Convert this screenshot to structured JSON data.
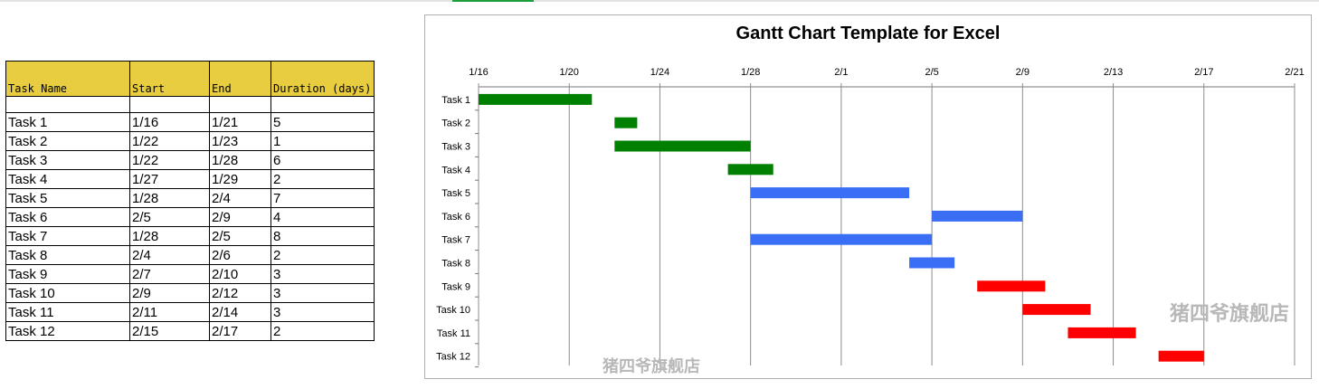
{
  "table": {
    "headers": [
      "Task Name",
      "Start",
      "End",
      "Duration (days)"
    ],
    "rows": [
      [
        "Task 1",
        "1/16",
        "1/21",
        "5"
      ],
      [
        "Task 2",
        "1/22",
        "1/23",
        "1"
      ],
      [
        "Task 3",
        "1/22",
        "1/28",
        "6"
      ],
      [
        "Task 4",
        "1/27",
        "1/29",
        "2"
      ],
      [
        "Task 5",
        "1/28",
        "2/4",
        "7"
      ],
      [
        "Task 6",
        "2/5",
        "2/9",
        "4"
      ],
      [
        "Task 7",
        "1/28",
        "2/5",
        "8"
      ],
      [
        "Task 8",
        "2/4",
        "2/6",
        "2"
      ],
      [
        "Task 9",
        "2/7",
        "2/10",
        "3"
      ],
      [
        "Task 10",
        "2/9",
        "2/12",
        "3"
      ],
      [
        "Task 11",
        "2/11",
        "2/14",
        "3"
      ],
      [
        "Task 12",
        "2/15",
        "2/17",
        "2"
      ]
    ]
  },
  "chart_data": {
    "type": "bar",
    "subtype": "gantt-horizontal",
    "title": "Gantt Chart Template for Excel",
    "x_axis_position": "top",
    "grid": "vertical",
    "xlim": [
      "1/16",
      "2/21"
    ],
    "x_ticks": [
      "1/16",
      "1/20",
      "1/24",
      "1/28",
      "2/1",
      "2/5",
      "2/9",
      "2/13",
      "2/17",
      "2/21"
    ],
    "categories": [
      "Task 1",
      "Task 2",
      "Task 3",
      "Task 4",
      "Task 5",
      "Task 6",
      "Task 7",
      "Task 8",
      "Task 9",
      "Task 10",
      "Task 11",
      "Task 12"
    ],
    "start": [
      "1/16",
      "1/22",
      "1/22",
      "1/27",
      "1/28",
      "2/5",
      "1/28",
      "2/4",
      "2/7",
      "2/9",
      "2/11",
      "2/15"
    ],
    "end": [
      "1/21",
      "1/23",
      "1/28",
      "1/29",
      "2/4",
      "2/9",
      "2/5",
      "2/6",
      "2/10",
      "2/12",
      "2/14",
      "2/17"
    ],
    "colors": [
      "#008000",
      "#008000",
      "#008000",
      "#008000",
      "#3a6ff5",
      "#3a6ff5",
      "#3a6ff5",
      "#3a6ff5",
      "#ff0000",
      "#ff0000",
      "#ff0000",
      "#ff0000"
    ]
  },
  "watermarks": [
    "猪四爷旗舰店",
    "猪四爷旗舰店"
  ]
}
